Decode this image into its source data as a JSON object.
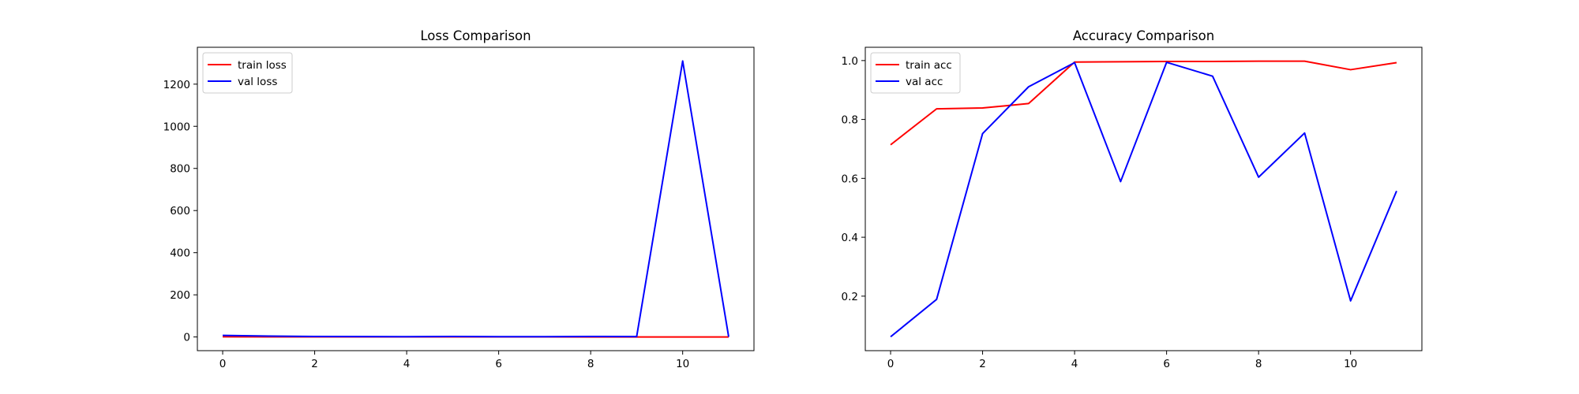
{
  "chart_data": [
    {
      "type": "line",
      "title": "Loss Comparison",
      "xlabel": "",
      "ylabel": "",
      "x": [
        0,
        1,
        2,
        3,
        4,
        5,
        6,
        7,
        8,
        9,
        10,
        11
      ],
      "xlim": [
        -0.55,
        11.55
      ],
      "ylim": [
        -65,
        1375
      ],
      "xticks": [
        0,
        2,
        4,
        6,
        8,
        10
      ],
      "yticks": [
        0,
        200,
        400,
        600,
        800,
        1000,
        1200
      ],
      "grid": false,
      "legend": "top-left",
      "series": [
        {
          "name": "train loss",
          "color": "#ff0000",
          "values": [
            1.0,
            0.6,
            0.5,
            0.45,
            0.3,
            0.3,
            0.25,
            0.25,
            0.2,
            0.2,
            0.2,
            0.2
          ]
        },
        {
          "name": "val loss",
          "color": "#0000ff",
          "values": [
            7.5,
            4.0,
            2.5,
            2.0,
            1.5,
            2.5,
            1.5,
            1.5,
            2.5,
            2.0,
            1310,
            0.6
          ]
        }
      ]
    },
    {
      "type": "line",
      "title": "Accuracy Comparison",
      "xlabel": "",
      "ylabel": "",
      "x": [
        0,
        1,
        2,
        3,
        4,
        5,
        6,
        7,
        8,
        9,
        10,
        11
      ],
      "xlim": [
        -0.55,
        11.55
      ],
      "ylim": [
        0.0149,
        1.0451
      ],
      "xticks": [
        0,
        2,
        4,
        6,
        8,
        10
      ],
      "yticks": [
        0.2,
        0.4,
        0.6,
        0.8,
        1.0
      ],
      "grid": false,
      "legend": "top-left",
      "series": [
        {
          "name": "train acc",
          "color": "#ff0000",
          "values": [
            0.714,
            0.836,
            0.839,
            0.854,
            0.995,
            0.996,
            0.997,
            0.997,
            0.998,
            0.998,
            0.969,
            0.993
          ]
        },
        {
          "name": "val acc",
          "color": "#0000ff",
          "values": [
            0.062,
            0.189,
            0.752,
            0.911,
            0.993,
            0.589,
            0.994,
            0.947,
            0.604,
            0.754,
            0.184,
            0.557
          ]
        }
      ]
    }
  ]
}
